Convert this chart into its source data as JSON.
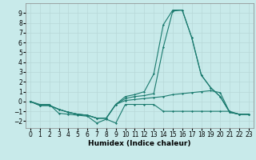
{
  "title": "",
  "xlabel": "Humidex (Indice chaleur)",
  "ylabel": "",
  "background_color": "#c8eaea",
  "grid_color": "#b8d8d8",
  "line_color": "#1a7a6e",
  "xlim": [
    -0.5,
    23.5
  ],
  "ylim": [
    -2.7,
    10.0
  ],
  "xticks": [
    0,
    1,
    2,
    3,
    4,
    5,
    6,
    7,
    8,
    9,
    10,
    11,
    12,
    13,
    14,
    15,
    16,
    17,
    18,
    19,
    20,
    21,
    22,
    23
  ],
  "yticks": [
    -2,
    -1,
    0,
    1,
    2,
    3,
    4,
    5,
    6,
    7,
    8,
    9
  ],
  "series": [
    [
      0.0,
      -0.3,
      -0.3,
      -1.2,
      -1.3,
      -1.4,
      -1.5,
      -2.2,
      -1.8,
      -2.2,
      -0.3,
      -0.3,
      -0.3,
      -0.3,
      -1.0,
      -1.0,
      -1.0,
      -1.0,
      -1.0,
      -1.0,
      -1.0,
      -1.0,
      -1.3,
      -1.3
    ],
    [
      0.0,
      -0.4,
      -0.4,
      -0.8,
      -1.1,
      -1.3,
      -1.4,
      -1.7,
      -1.7,
      -0.3,
      0.1,
      0.2,
      0.3,
      0.4,
      0.5,
      0.7,
      0.8,
      0.9,
      1.0,
      1.1,
      0.9,
      -1.1,
      -1.3,
      -1.3
    ],
    [
      0.0,
      -0.4,
      -0.4,
      -0.8,
      -1.1,
      -1.3,
      -1.4,
      -1.7,
      -1.7,
      -0.3,
      0.3,
      0.5,
      0.6,
      0.8,
      5.5,
      9.2,
      9.3,
      6.5,
      2.7,
      1.4,
      0.5,
      -1.1,
      -1.3,
      -1.3
    ],
    [
      0.0,
      -0.4,
      -0.4,
      -0.8,
      -1.1,
      -1.3,
      -1.4,
      -1.7,
      -1.7,
      -0.3,
      0.5,
      0.7,
      1.0,
      2.8,
      7.8,
      9.3,
      9.3,
      6.5,
      2.7,
      1.4,
      0.5,
      -1.1,
      -1.3,
      -1.3
    ]
  ],
  "tick_fontsize": 5.5,
  "xlabel_fontsize": 6.5,
  "xlabel_fontweight": "bold",
  "marker_size": 1.5,
  "linewidth": 0.8
}
